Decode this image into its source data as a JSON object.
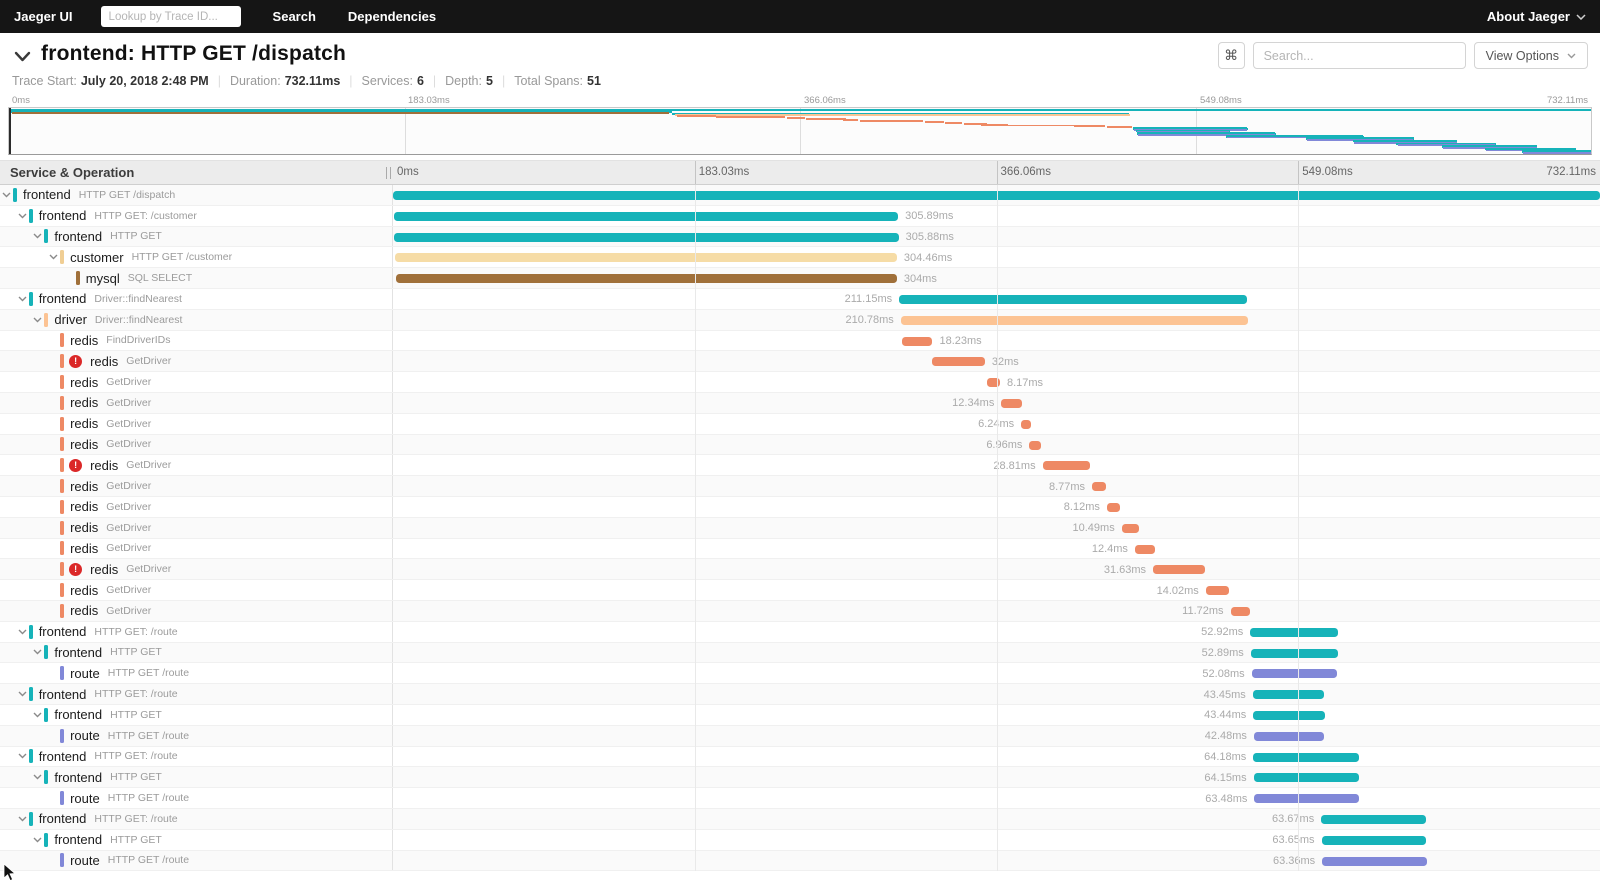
{
  "navbar": {
    "brand": "Jaeger UI",
    "trace_lookup_placeholder": "Lookup by Trace ID...",
    "links": [
      {
        "label": "Search"
      },
      {
        "label": "Dependencies"
      }
    ],
    "about_label": "About Jaeger"
  },
  "trace_header": {
    "title": "frontend: HTTP GET /dispatch",
    "shortcut_glyph": "⌘",
    "search_placeholder": "Search...",
    "view_options_label": "View Options",
    "meta": [
      {
        "label": "Trace Start:",
        "value": "July 20, 2018 2:48 PM"
      },
      {
        "label": "Duration:",
        "value": "732.11ms"
      },
      {
        "label": "Services:",
        "value": "6"
      },
      {
        "label": "Depth:",
        "value": "5"
      },
      {
        "label": "Total Spans:",
        "value": "51"
      }
    ]
  },
  "timeline": {
    "column_title": "Service & Operation",
    "ticks": [
      "0ms",
      "183.03ms",
      "366.06ms",
      "549.08ms",
      "732.11ms"
    ]
  },
  "colors": {
    "frontend": "#16B3B9",
    "customer": "#F0CE94",
    "customer_bar": "#F6DCA6",
    "mysql": "#A0703A",
    "driver": "#FCC393",
    "redis": "#EE8964",
    "route": "#8188D8",
    "error": "#DB2828",
    "accent_teal": "#16B3B9"
  },
  "chart_data": {
    "type": "gantt-trace",
    "duration_ms": 732.11,
    "axis_ticks_ms": [
      0,
      183.03,
      366.06,
      549.08,
      732.11
    ],
    "spans": [
      {
        "service": "frontend",
        "operation": "HTTP GET /dispatch",
        "depth": 0,
        "start": 0,
        "duration": 732.11,
        "label": "",
        "side": "none",
        "error": false,
        "expandable": true
      },
      {
        "service": "frontend",
        "operation": "HTTP GET: /customer",
        "depth": 1,
        "start": 0.5,
        "duration": 305.89,
        "label": "305.89ms",
        "side": "right",
        "error": false,
        "expandable": true
      },
      {
        "service": "frontend",
        "operation": "HTTP GET",
        "depth": 2,
        "start": 0.8,
        "duration": 305.88,
        "label": "305.88ms",
        "side": "right",
        "error": false,
        "expandable": true
      },
      {
        "service": "customer",
        "operation": "HTTP GET /customer",
        "depth": 3,
        "start": 1.2,
        "duration": 304.46,
        "label": "304.46ms",
        "side": "right",
        "error": false,
        "expandable": true
      },
      {
        "service": "mysql",
        "operation": "SQL SELECT",
        "depth": 4,
        "start": 1.6,
        "duration": 304,
        "label": "304ms",
        "side": "right",
        "error": false,
        "expandable": false
      },
      {
        "service": "frontend",
        "operation": "Driver::findNearest",
        "depth": 1,
        "start": 307,
        "duration": 211.15,
        "label": "211.15ms",
        "side": "left",
        "error": false,
        "expandable": true
      },
      {
        "service": "driver",
        "operation": "Driver::findNearest",
        "depth": 2,
        "start": 308,
        "duration": 210.78,
        "label": "210.78ms",
        "side": "left",
        "error": false,
        "expandable": true
      },
      {
        "service": "redis",
        "operation": "FindDriverIDs",
        "depth": 3,
        "start": 309,
        "duration": 18.23,
        "label": "18.23ms",
        "side": "right",
        "error": false,
        "expandable": false
      },
      {
        "service": "redis",
        "operation": "GetDriver",
        "depth": 3,
        "start": 327,
        "duration": 32,
        "label": "32ms",
        "side": "right",
        "error": true,
        "expandable": false
      },
      {
        "service": "redis",
        "operation": "GetDriver",
        "depth": 3,
        "start": 360,
        "duration": 8.17,
        "label": "8.17ms",
        "side": "right",
        "error": false,
        "expandable": false
      },
      {
        "service": "redis",
        "operation": "GetDriver",
        "depth": 3,
        "start": 369,
        "duration": 12.34,
        "label": "12.34ms",
        "side": "left",
        "error": false,
        "expandable": false
      },
      {
        "service": "redis",
        "operation": "GetDriver",
        "depth": 3,
        "start": 381,
        "duration": 6.24,
        "label": "6.24ms",
        "side": "left",
        "error": false,
        "expandable": false
      },
      {
        "service": "redis",
        "operation": "GetDriver",
        "depth": 3,
        "start": 386,
        "duration": 6.96,
        "label": "6.96ms",
        "side": "left",
        "error": false,
        "expandable": false
      },
      {
        "service": "redis",
        "operation": "GetDriver",
        "depth": 3,
        "start": 394,
        "duration": 28.81,
        "label": "28.81ms",
        "side": "left",
        "error": true,
        "expandable": false
      },
      {
        "service": "redis",
        "operation": "GetDriver",
        "depth": 3,
        "start": 424,
        "duration": 8.77,
        "label": "8.77ms",
        "side": "left",
        "error": false,
        "expandable": false
      },
      {
        "service": "redis",
        "operation": "GetDriver",
        "depth": 3,
        "start": 433,
        "duration": 8.12,
        "label": "8.12ms",
        "side": "left",
        "error": false,
        "expandable": false
      },
      {
        "service": "redis",
        "operation": "GetDriver",
        "depth": 3,
        "start": 442,
        "duration": 10.49,
        "label": "10.49ms",
        "side": "left",
        "error": false,
        "expandable": false
      },
      {
        "service": "redis",
        "operation": "GetDriver",
        "depth": 3,
        "start": 450,
        "duration": 12.4,
        "label": "12.4ms",
        "side": "left",
        "error": false,
        "expandable": false
      },
      {
        "service": "redis",
        "operation": "GetDriver",
        "depth": 3,
        "start": 461,
        "duration": 31.63,
        "label": "31.63ms",
        "side": "left",
        "error": true,
        "expandable": false
      },
      {
        "service": "redis",
        "operation": "GetDriver",
        "depth": 3,
        "start": 493,
        "duration": 14.02,
        "label": "14.02ms",
        "side": "left",
        "error": false,
        "expandable": false
      },
      {
        "service": "redis",
        "operation": "GetDriver",
        "depth": 3,
        "start": 508,
        "duration": 11.72,
        "label": "11.72ms",
        "side": "left",
        "error": false,
        "expandable": false
      },
      {
        "service": "frontend",
        "operation": "HTTP GET: /route",
        "depth": 1,
        "start": 520,
        "duration": 52.92,
        "label": "52.92ms",
        "side": "left",
        "error": false,
        "expandable": true
      },
      {
        "service": "frontend",
        "operation": "HTTP GET",
        "depth": 2,
        "start": 520.3,
        "duration": 52.89,
        "label": "52.89ms",
        "side": "left",
        "error": false,
        "expandable": true
      },
      {
        "service": "route",
        "operation": "HTTP GET /route",
        "depth": 3,
        "start": 520.8,
        "duration": 52.08,
        "label": "52.08ms",
        "side": "left",
        "error": false,
        "expandable": false
      },
      {
        "service": "frontend",
        "operation": "HTTP GET: /route",
        "depth": 1,
        "start": 521.5,
        "duration": 43.45,
        "label": "43.45ms",
        "side": "left",
        "error": false,
        "expandable": true
      },
      {
        "service": "frontend",
        "operation": "HTTP GET",
        "depth": 2,
        "start": 521.8,
        "duration": 43.44,
        "label": "43.44ms",
        "side": "left",
        "error": false,
        "expandable": true
      },
      {
        "service": "route",
        "operation": "HTTP GET /route",
        "depth": 3,
        "start": 522.2,
        "duration": 42.48,
        "label": "42.48ms",
        "side": "left",
        "error": false,
        "expandable": false
      },
      {
        "service": "frontend",
        "operation": "HTTP GET: /route",
        "depth": 1,
        "start": 521.8,
        "duration": 64.18,
        "label": "64.18ms",
        "side": "left",
        "error": false,
        "expandable": true
      },
      {
        "service": "frontend",
        "operation": "HTTP GET",
        "depth": 2,
        "start": 522,
        "duration": 64.15,
        "label": "64.15ms",
        "side": "left",
        "error": false,
        "expandable": true
      },
      {
        "service": "route",
        "operation": "HTTP GET /route",
        "depth": 3,
        "start": 522.5,
        "duration": 63.48,
        "label": "63.48ms",
        "side": "left",
        "error": false,
        "expandable": false
      },
      {
        "service": "frontend",
        "operation": "HTTP GET: /route",
        "depth": 1,
        "start": 563,
        "duration": 63.67,
        "label": "63.67ms",
        "side": "left",
        "error": false,
        "expandable": true
      },
      {
        "service": "frontend",
        "operation": "HTTP GET",
        "depth": 2,
        "start": 563.2,
        "duration": 63.65,
        "label": "63.65ms",
        "side": "left",
        "error": false,
        "expandable": true
      },
      {
        "service": "route",
        "operation": "HTTP GET /route",
        "depth": 3,
        "start": 563.6,
        "duration": 63.36,
        "label": "63.36ms",
        "side": "left",
        "error": false,
        "expandable": false
      }
    ],
    "overview_extra_spans": [
      {
        "service": "frontend",
        "start": 600,
        "duration": 50
      },
      {
        "service": "frontend",
        "start": 600.3,
        "duration": 49.8
      },
      {
        "service": "route",
        "start": 600.6,
        "duration": 49.3
      },
      {
        "service": "frontend",
        "start": 622,
        "duration": 48
      },
      {
        "service": "frontend",
        "start": 622.3,
        "duration": 47.8
      },
      {
        "service": "route",
        "start": 622.6,
        "duration": 47.3
      },
      {
        "service": "frontend",
        "start": 642,
        "duration": 46
      },
      {
        "service": "frontend",
        "start": 642.3,
        "duration": 45.8
      },
      {
        "service": "route",
        "start": 642.6,
        "duration": 45.3
      },
      {
        "service": "frontend",
        "start": 663,
        "duration": 44
      },
      {
        "service": "frontend",
        "start": 663.3,
        "duration": 43.8
      },
      {
        "service": "route",
        "start": 663.6,
        "duration": 43.3
      },
      {
        "service": "frontend",
        "start": 683,
        "duration": 42
      },
      {
        "service": "frontend",
        "start": 683.3,
        "duration": 41.8
      },
      {
        "service": "route",
        "start": 683.6,
        "duration": 41.3
      },
      {
        "service": "frontend",
        "start": 700,
        "duration": 32
      },
      {
        "service": "frontend",
        "start": 700.3,
        "duration": 31.8
      },
      {
        "service": "route",
        "start": 700.6,
        "duration": 31.3
      }
    ]
  }
}
